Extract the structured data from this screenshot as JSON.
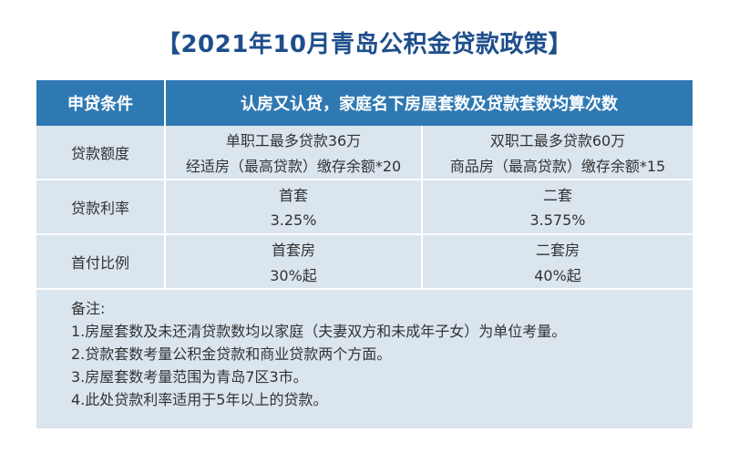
{
  "title": "【2021年10月青岛公积金贷款政策】",
  "header": {
    "col1": "申贷条件",
    "col2": "认房又认贷，家庭名下房屋套数及贷款套数均算次数"
  },
  "rows": {
    "loan_amount": {
      "label": "贷款额度",
      "left_top": "单职工最多贷款36万",
      "right_top": "双职工最多贷款60万",
      "left_bottom": "经适房（最高贷款）缴存余额*20",
      "right_bottom": "商品房（最高贷款）缴存余额*15"
    },
    "interest_rate": {
      "label": "贷款利率",
      "left_top": "首套",
      "right_top": "二套",
      "left_bottom": "3.25%",
      "right_bottom": "3.575%"
    },
    "down_payment": {
      "label": "首付比例",
      "left_top": "首套房",
      "right_top": "二套房",
      "left_bottom": "30%起",
      "right_bottom": "40%起"
    }
  },
  "notes": {
    "heading": "备注:",
    "items": [
      "1.房屋套数及未还清贷款数均以家庭（夫妻双方和未成年子女）为单位考量。",
      "2.贷款套数考量公积金贷款和商业贷款两个方面。",
      "3.房屋套数考量范围为青岛7区3市。",
      "4.此处贷款利率适用于5年以上的贷款。"
    ]
  },
  "colors": {
    "title": "#1e4e8c",
    "header_bg": "#2f79b3",
    "table_bg": "#dae5ee"
  }
}
